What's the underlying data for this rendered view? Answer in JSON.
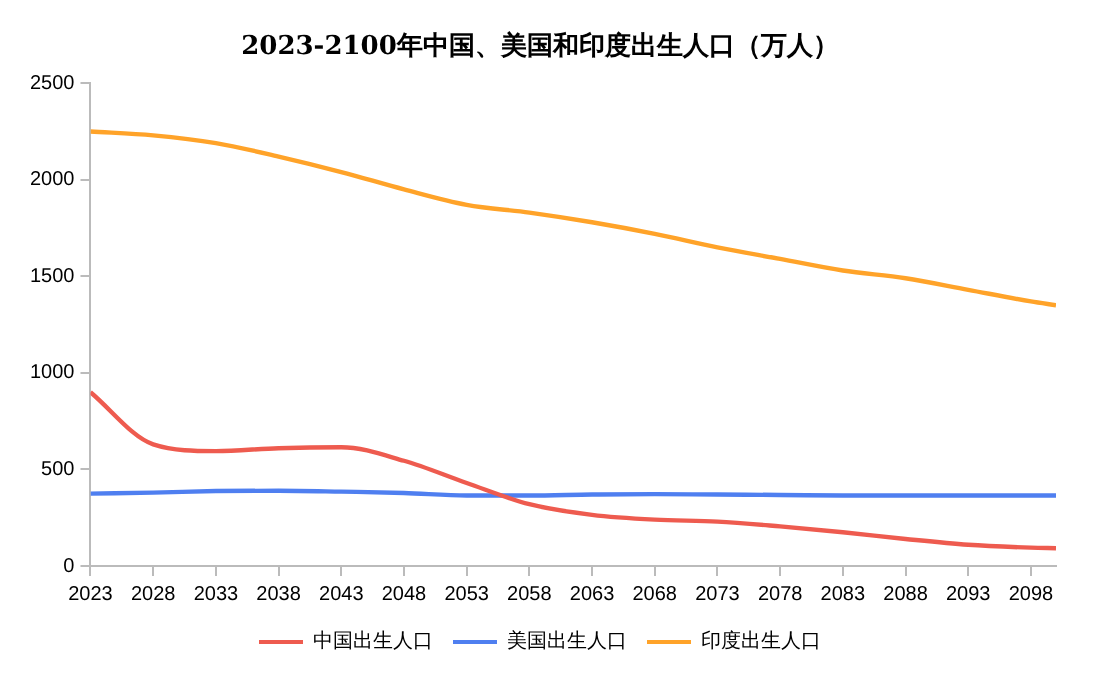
{
  "chart_data": {
    "type": "line",
    "title": "2023-2100年中国、美国和印度出生人口（万人）",
    "x": [
      2023,
      2028,
      2033,
      2038,
      2043,
      2048,
      2053,
      2058,
      2063,
      2068,
      2073,
      2078,
      2083,
      2088,
      2093,
      2098,
      2100
    ],
    "series": [
      {
        "name": "中国出生人口",
        "color": "#ee5b4f",
        "values": [
          900,
          630,
          595,
          610,
          615,
          545,
          430,
          320,
          265,
          240,
          230,
          205,
          175,
          140,
          110,
          95,
          92
        ]
      },
      {
        "name": "美国出生人口",
        "color": "#4f7ff0",
        "values": [
          375,
          380,
          388,
          390,
          385,
          378,
          365,
          365,
          370,
          372,
          370,
          368,
          365,
          365,
          365,
          365,
          365
        ]
      },
      {
        "name": "印度出生人口",
        "color": "#ffa329",
        "values": [
          2250,
          2230,
          2190,
          2120,
          2040,
          1950,
          1870,
          1830,
          1780,
          1720,
          1650,
          1590,
          1530,
          1490,
          1430,
          1370,
          1350
        ]
      }
    ],
    "xlim": [
      2023,
      2100
    ],
    "xticks": [
      2023,
      2028,
      2033,
      2038,
      2043,
      2048,
      2053,
      2058,
      2063,
      2068,
      2073,
      2078,
      2083,
      2088,
      2093,
      2098
    ],
    "ylim": [
      0,
      2500
    ],
    "yticks": [
      0,
      500,
      1000,
      1500,
      2000,
      2500
    ],
    "grid": false,
    "legend": "bottom",
    "marker": "none",
    "line_style": "solid"
  }
}
